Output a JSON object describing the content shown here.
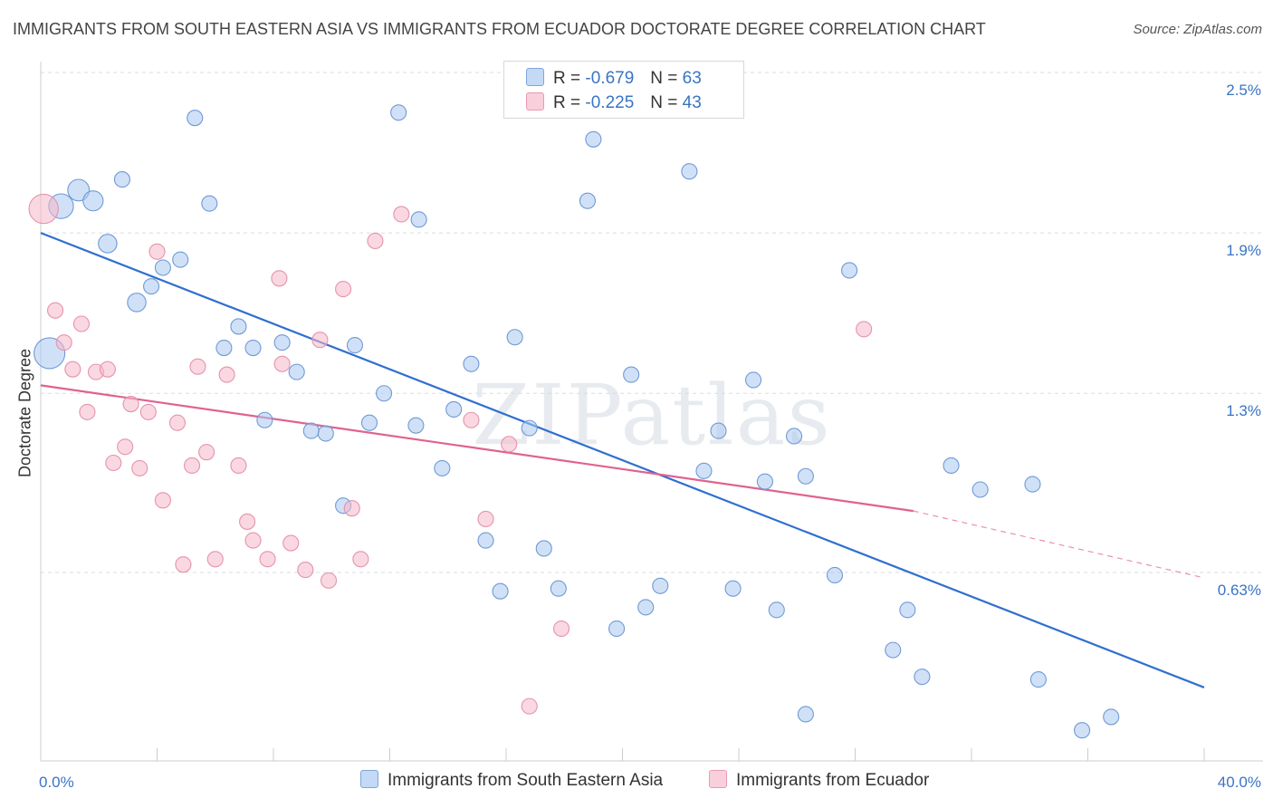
{
  "title": "IMMIGRANTS FROM SOUTH EASTERN ASIA VS IMMIGRANTS FROM ECUADOR DOCTORATE DEGREE CORRELATION CHART",
  "source": "Source: ZipAtlas.com",
  "watermark": "ZIPatlas",
  "legend": {
    "rows": [
      {
        "r_label": "R =",
        "r_value": "-0.679",
        "n_label": "N =",
        "n_value": "63",
        "color": "#a9c8f0"
      },
      {
        "r_label": "R =",
        "r_value": "-0.225",
        "n_label": "N =",
        "n_value": "43",
        "color": "#f5b8cb"
      }
    ]
  },
  "chart_data": {
    "type": "scatter",
    "xlabel": "",
    "ylabel": "Doctorate Degree",
    "xlim": [
      0,
      40
    ],
    "ylim": [
      0,
      2.5
    ],
    "x_tick_labels": [
      "0.0%",
      "40.0%"
    ],
    "y_ticks": [
      0.63,
      1.3,
      1.9,
      2.5
    ],
    "y_tick_labels": [
      "0.63%",
      "1.3%",
      "1.9%",
      "2.5%"
    ],
    "grid": true,
    "legend_position": "bottom-center",
    "series": [
      {
        "name": "Immigrants from South Eastern Asia",
        "color": "#a9c8f0",
        "edge": "#6f9ad6",
        "line_color": "#2f6fd0",
        "trend": {
          "x": [
            0,
            40
          ],
          "y": [
            1.9,
            0.2
          ]
        },
        "points": [
          {
            "x": 0.3,
            "y": 1.45,
            "s": 2.0
          },
          {
            "x": 0.7,
            "y": 2.0,
            "s": 1.6
          },
          {
            "x": 1.3,
            "y": 2.06,
            "s": 1.4
          },
          {
            "x": 1.8,
            "y": 2.02,
            "s": 1.3
          },
          {
            "x": 2.3,
            "y": 1.86,
            "s": 1.2
          },
          {
            "x": 2.8,
            "y": 2.1
          },
          {
            "x": 3.3,
            "y": 1.64,
            "s": 1.2
          },
          {
            "x": 3.8,
            "y": 1.7
          },
          {
            "x": 4.2,
            "y": 1.77
          },
          {
            "x": 4.8,
            "y": 1.8
          },
          {
            "x": 5.3,
            "y": 2.33
          },
          {
            "x": 5.8,
            "y": 2.01
          },
          {
            "x": 6.3,
            "y": 1.47
          },
          {
            "x": 6.8,
            "y": 1.55
          },
          {
            "x": 7.3,
            "y": 1.47
          },
          {
            "x": 7.7,
            "y": 1.2
          },
          {
            "x": 8.3,
            "y": 1.49
          },
          {
            "x": 8.8,
            "y": 1.38
          },
          {
            "x": 9.3,
            "y": 1.16
          },
          {
            "x": 9.8,
            "y": 1.15
          },
          {
            "x": 10.4,
            "y": 0.88
          },
          {
            "x": 10.8,
            "y": 1.48
          },
          {
            "x": 11.3,
            "y": 1.19
          },
          {
            "x": 11.8,
            "y": 1.3
          },
          {
            "x": 12.3,
            "y": 2.35
          },
          {
            "x": 12.9,
            "y": 1.18
          },
          {
            "x": 13.0,
            "y": 1.95
          },
          {
            "x": 13.8,
            "y": 1.02
          },
          {
            "x": 14.2,
            "y": 1.24
          },
          {
            "x": 14.8,
            "y": 1.41
          },
          {
            "x": 15.3,
            "y": 0.75
          },
          {
            "x": 15.8,
            "y": 0.56
          },
          {
            "x": 16.3,
            "y": 1.51
          },
          {
            "x": 16.8,
            "y": 1.17
          },
          {
            "x": 17.3,
            "y": 0.72
          },
          {
            "x": 17.8,
            "y": 0.57
          },
          {
            "x": 18.8,
            "y": 2.02
          },
          {
            "x": 19.0,
            "y": 2.25
          },
          {
            "x": 19.8,
            "y": 0.42
          },
          {
            "x": 20.3,
            "y": 1.37
          },
          {
            "x": 20.8,
            "y": 0.5
          },
          {
            "x": 21.3,
            "y": 0.58
          },
          {
            "x": 22.3,
            "y": 2.13
          },
          {
            "x": 22.8,
            "y": 1.01
          },
          {
            "x": 23.3,
            "y": 1.16
          },
          {
            "x": 23.8,
            "y": 0.57
          },
          {
            "x": 24.5,
            "y": 1.35
          },
          {
            "x": 24.9,
            "y": 0.97
          },
          {
            "x": 25.3,
            "y": 0.49
          },
          {
            "x": 25.9,
            "y": 1.14
          },
          {
            "x": 26.3,
            "y": 0.99
          },
          {
            "x": 26.3,
            "y": 0.1
          },
          {
            "x": 27.3,
            "y": 0.62
          },
          {
            "x": 27.8,
            "y": 1.76
          },
          {
            "x": 29.3,
            "y": 0.34
          },
          {
            "x": 29.8,
            "y": 0.49
          },
          {
            "x": 30.3,
            "y": 0.24
          },
          {
            "x": 31.3,
            "y": 1.03
          },
          {
            "x": 32.3,
            "y": 0.94
          },
          {
            "x": 34.3,
            "y": 0.23
          },
          {
            "x": 34.1,
            "y": 0.96
          },
          {
            "x": 35.8,
            "y": 0.04
          },
          {
            "x": 36.8,
            "y": 0.09
          }
        ]
      },
      {
        "name": "Immigrants from Ecuador",
        "color": "#f5b8cb",
        "edge": "#e593ad",
        "line_color": "#e0628f",
        "trend": {
          "x": [
            0,
            30
          ],
          "y": [
            1.33,
            0.86
          ]
        },
        "trend_dashed": {
          "x": [
            30,
            40
          ],
          "y": [
            0.86,
            0.61
          ]
        },
        "points": [
          {
            "x": 0.1,
            "y": 1.99,
            "s": 1.9
          },
          {
            "x": 0.5,
            "y": 1.61
          },
          {
            "x": 0.8,
            "y": 1.49
          },
          {
            "x": 1.1,
            "y": 1.39
          },
          {
            "x": 1.4,
            "y": 1.56
          },
          {
            "x": 1.6,
            "y": 1.23
          },
          {
            "x": 1.9,
            "y": 1.38
          },
          {
            "x": 2.3,
            "y": 1.39
          },
          {
            "x": 2.5,
            "y": 1.04
          },
          {
            "x": 2.9,
            "y": 1.1
          },
          {
            "x": 3.1,
            "y": 1.26
          },
          {
            "x": 3.4,
            "y": 1.02
          },
          {
            "x": 3.7,
            "y": 1.23
          },
          {
            "x": 4.0,
            "y": 1.83
          },
          {
            "x": 4.2,
            "y": 0.9
          },
          {
            "x": 4.7,
            "y": 1.19
          },
          {
            "x": 4.9,
            "y": 0.66
          },
          {
            "x": 5.2,
            "y": 1.03
          },
          {
            "x": 5.4,
            "y": 1.4
          },
          {
            "x": 5.7,
            "y": 1.08
          },
          {
            "x": 6.0,
            "y": 0.68
          },
          {
            "x": 6.4,
            "y": 1.37
          },
          {
            "x": 6.8,
            "y": 1.03
          },
          {
            "x": 7.1,
            "y": 0.82
          },
          {
            "x": 7.3,
            "y": 0.75
          },
          {
            "x": 7.8,
            "y": 0.68
          },
          {
            "x": 8.2,
            "y": 1.73
          },
          {
            "x": 8.3,
            "y": 1.41
          },
          {
            "x": 8.6,
            "y": 0.74
          },
          {
            "x": 9.1,
            "y": 0.64
          },
          {
            "x": 9.6,
            "y": 1.5
          },
          {
            "x": 9.9,
            "y": 0.6
          },
          {
            "x": 10.4,
            "y": 1.69
          },
          {
            "x": 10.7,
            "y": 0.87
          },
          {
            "x": 11.0,
            "y": 0.68
          },
          {
            "x": 11.5,
            "y": 1.87
          },
          {
            "x": 12.4,
            "y": 1.97
          },
          {
            "x": 14.8,
            "y": 1.2
          },
          {
            "x": 15.3,
            "y": 0.83
          },
          {
            "x": 16.1,
            "y": 1.11
          },
          {
            "x": 16.8,
            "y": 0.13
          },
          {
            "x": 17.9,
            "y": 0.42
          },
          {
            "x": 28.3,
            "y": 1.54
          }
        ]
      }
    ]
  }
}
